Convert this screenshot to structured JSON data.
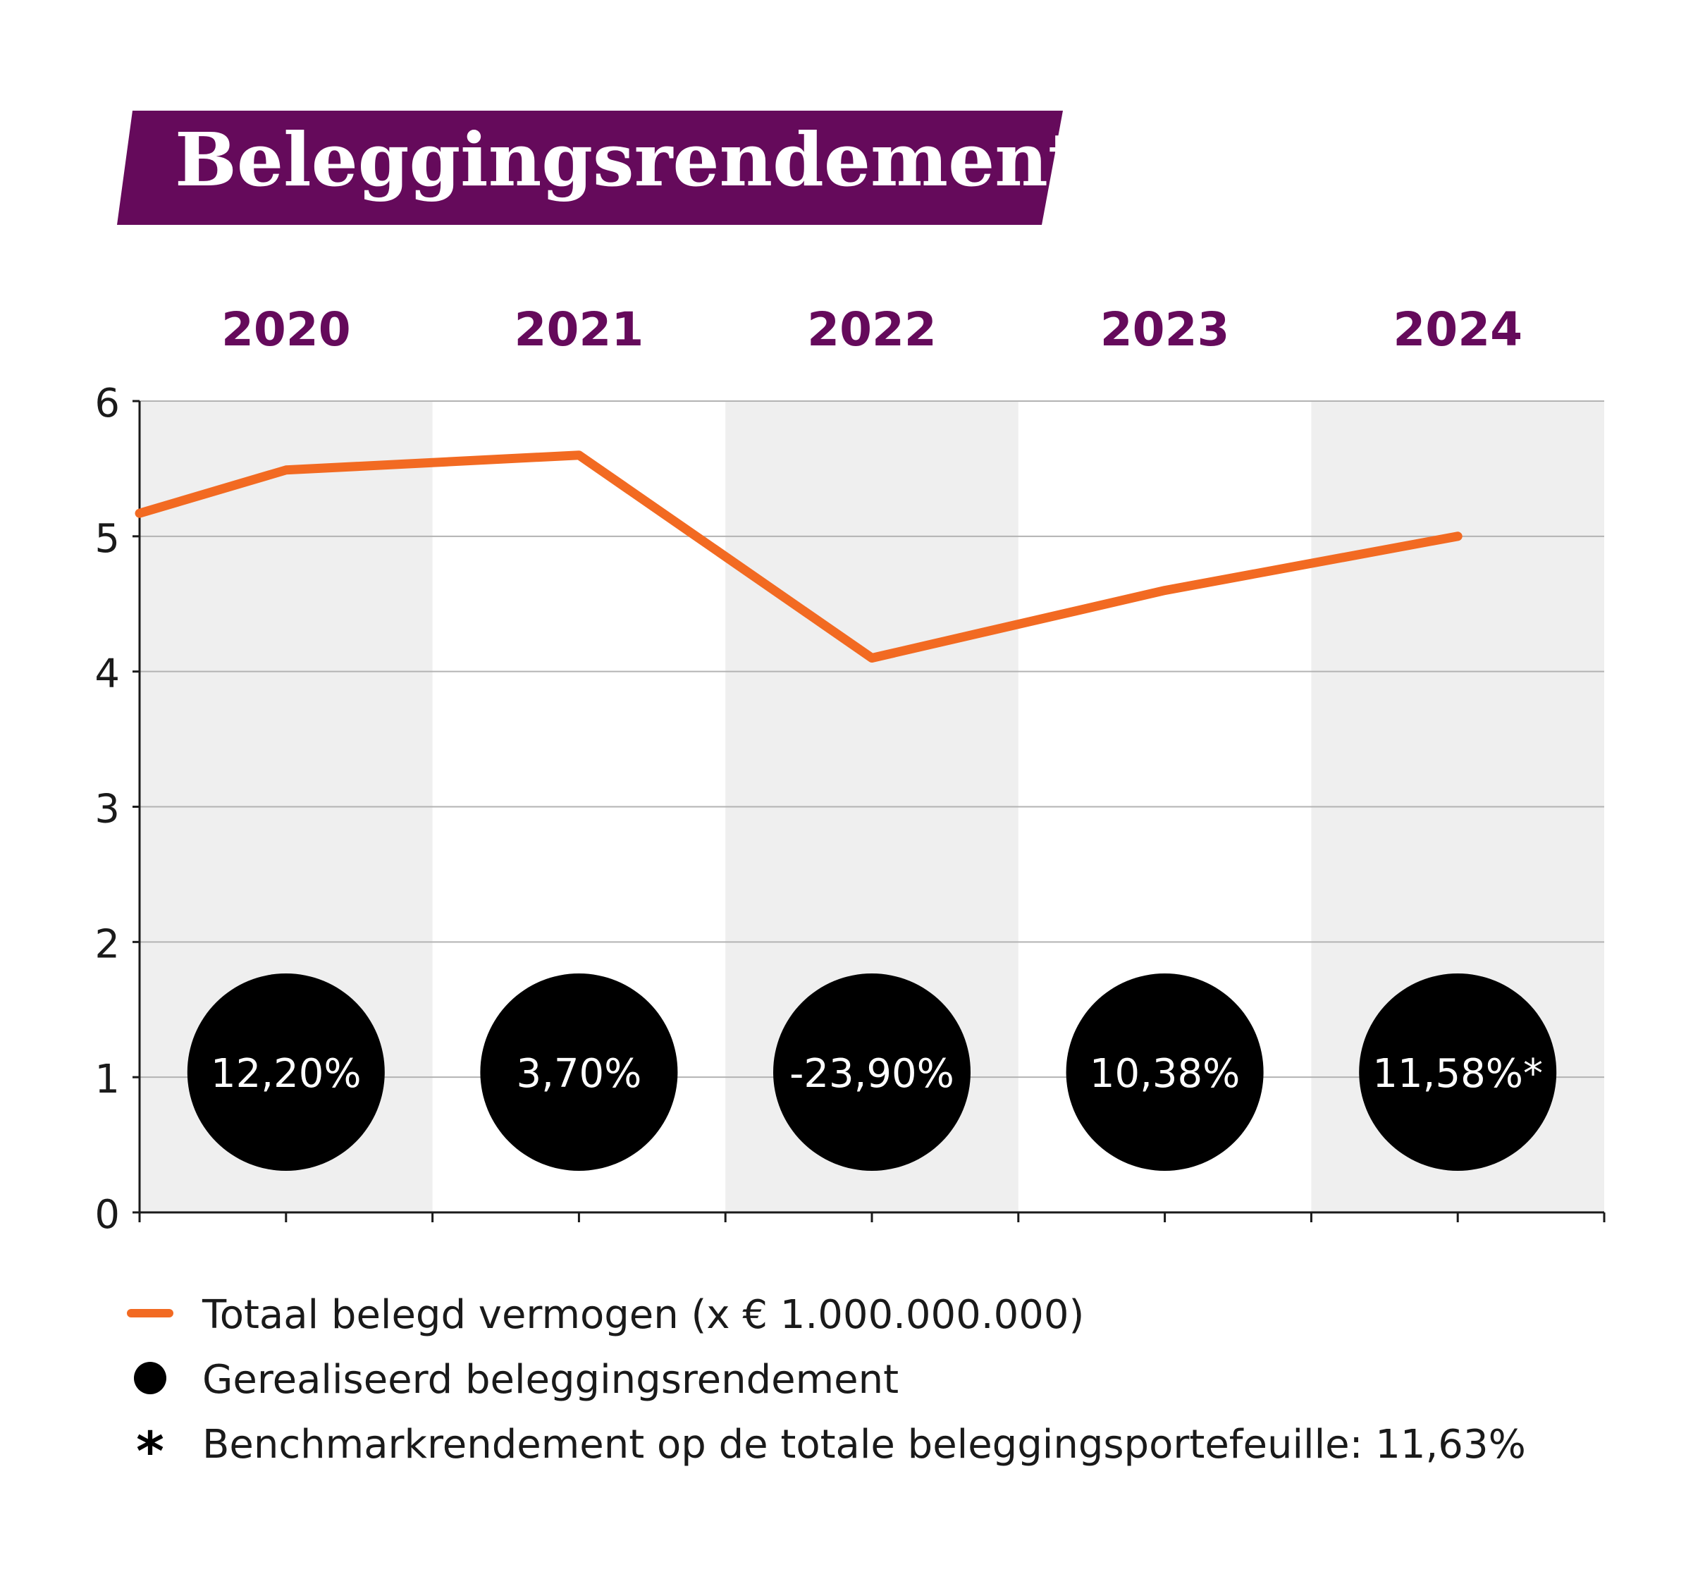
{
  "chart_data": {
    "type": "line",
    "title": "Beleggingsrendement",
    "categories": [
      "2020",
      "2021",
      "2022",
      "2023",
      "2024"
    ],
    "series": [
      {
        "name": "Totaal belegd vermogen (x € 1.000.000.000)",
        "values": [
          5.49,
          5.6,
          4.1,
          4.6,
          5.0
        ],
        "start_value": 5.17
      }
    ],
    "returns": [
      "12,20%",
      "3,70%",
      "-23,90%",
      "10,38%",
      "11,58%*"
    ],
    "ylim": [
      0,
      6
    ],
    "yticks": [
      "0",
      "1",
      "2",
      "3",
      "4",
      "5",
      "6"
    ],
    "grid": true,
    "legend_placement": "bottom",
    "legend": [
      {
        "symbol": "line",
        "label": "Totaal belegd vermogen (x € 1.000.000.000)"
      },
      {
        "symbol": "dot",
        "label": "Gerealiseerd beleggingsrendement"
      },
      {
        "symbol": "asterisk",
        "label": "Benchmarkrendement op de totale beleggingsportefeuille: 11,63%"
      }
    ],
    "colors": {
      "title_bg": "#650a5b",
      "title_fg": "#ffffff",
      "year_fg": "#650a5b",
      "line": "#f26a22",
      "band": "#efefef",
      "grid": "#b3b3b3",
      "axis": "#1a1a1a",
      "bubble": "#000000",
      "bubble_fg": "#ffffff"
    }
  }
}
